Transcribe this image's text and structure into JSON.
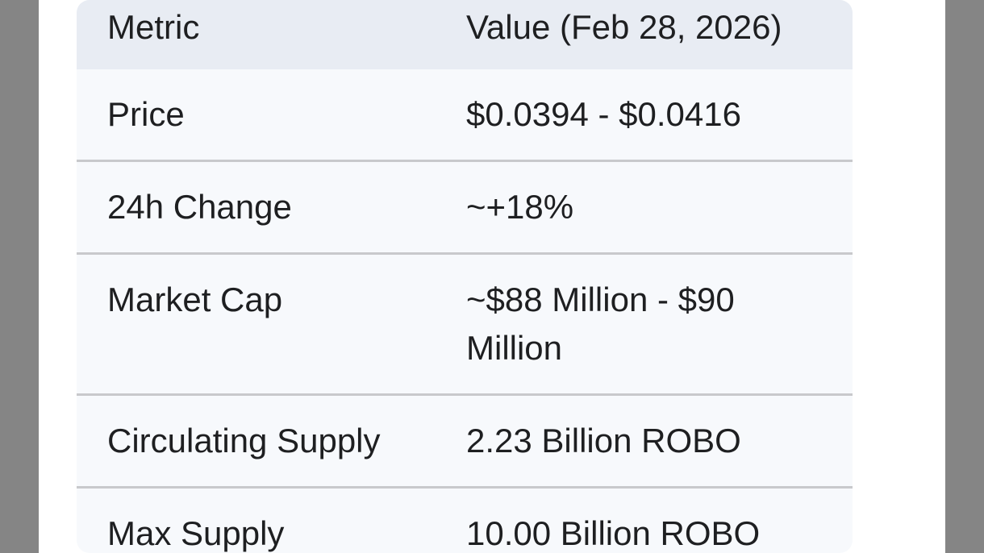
{
  "page": {
    "background_color": "#ffffff",
    "gutter_color": "#858585"
  },
  "table": {
    "header_bg_color": "#e8ecf3",
    "row_bg_color": "#f7f9fc",
    "divider_color": "#c8c9cc",
    "text_color": "#1e1f21",
    "columns": [
      "Metric",
      "Value (Feb 28, 2026)"
    ],
    "rows": [
      {
        "metric": "Price",
        "value": "$0.0394 - $0.0416"
      },
      {
        "metric": "24h Change",
        "value": "~+18%"
      },
      {
        "metric": "Market Cap",
        "value": "~$88 Million - $90 Million"
      },
      {
        "metric": "Circulating Supply",
        "value": "2.23 Billion ROBO"
      },
      {
        "metric": "Max Supply",
        "value": "10.00 Billion ROBO"
      }
    ]
  }
}
